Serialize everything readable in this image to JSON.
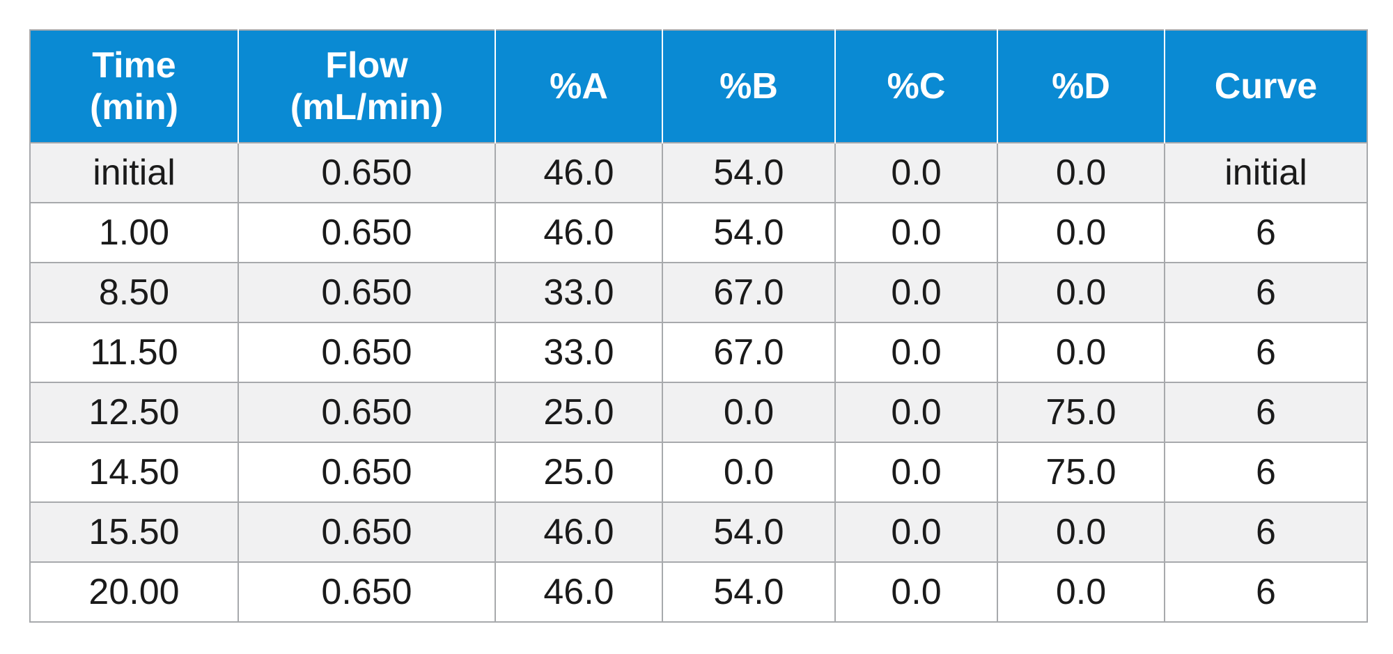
{
  "table": {
    "headers": [
      {
        "line1": "Time",
        "line2": "(min)"
      },
      {
        "line1": "Flow",
        "line2": "(mL/min)"
      },
      {
        "line1": "%A",
        "line2": ""
      },
      {
        "line1": "%B",
        "line2": ""
      },
      {
        "line1": "%C",
        "line2": ""
      },
      {
        "line1": "%D",
        "line2": ""
      },
      {
        "line1": "Curve",
        "line2": ""
      }
    ],
    "rows": [
      [
        "initial",
        "0.650",
        "46.0",
        "54.0",
        "0.0",
        "0.0",
        "initial"
      ],
      [
        "1.00",
        "0.650",
        "46.0",
        "54.0",
        "0.0",
        "0.0",
        "6"
      ],
      [
        "8.50",
        "0.650",
        "33.0",
        "67.0",
        "0.0",
        "0.0",
        "6"
      ],
      [
        "11.50",
        "0.650",
        "33.0",
        "67.0",
        "0.0",
        "0.0",
        "6"
      ],
      [
        "12.50",
        "0.650",
        "25.0",
        "0.0",
        "0.0",
        "75.0",
        "6"
      ],
      [
        "14.50",
        "0.650",
        "25.0",
        "0.0",
        "0.0",
        "75.0",
        "6"
      ],
      [
        "15.50",
        "0.650",
        "46.0",
        "54.0",
        "0.0",
        "0.0",
        "6"
      ],
      [
        "20.00",
        "0.650",
        "46.0",
        "54.0",
        "0.0",
        "0.0",
        "6"
      ]
    ]
  },
  "colors": {
    "header_bg": "#0a8ad3",
    "header_text": "#ffffff",
    "row_alt_bg": "#f1f1f2",
    "border": "#a7a9ac"
  }
}
